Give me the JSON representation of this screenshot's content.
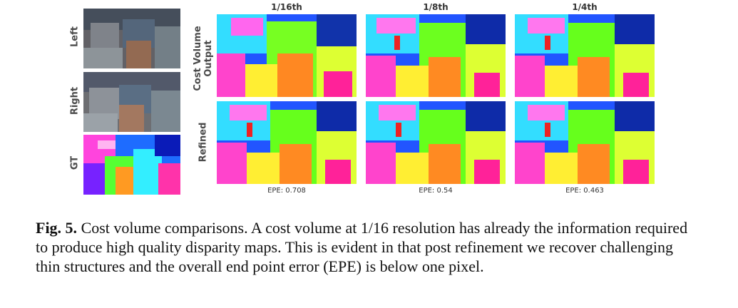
{
  "figure": {
    "row_labels": {
      "left": "Left",
      "right": "Right",
      "gt": "GT",
      "cost_volume": "Cost Volume Output",
      "refined": "Refined"
    },
    "columns": [
      {
        "heading": "1/16th",
        "epe": "EPE: 0.708"
      },
      {
        "heading": "1/8th",
        "epe": "EPE: 0.54"
      },
      {
        "heading": "1/4th",
        "epe": "EPE: 0.463"
      }
    ]
  },
  "caption": {
    "label": "Fig. 5.",
    "text": "Cost volume comparisons. A cost volume at 1/16 resolution has already the information required to produce high quality disparity maps. This is evident in that post refinement we recover challenging thin structures and the overall end point error (EPE) is below one pixel."
  }
}
